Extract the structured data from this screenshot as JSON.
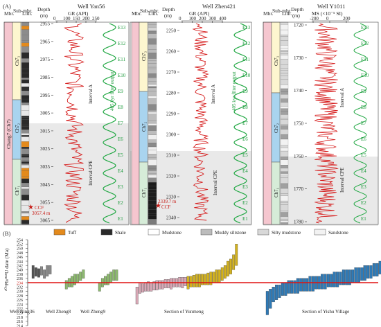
{
  "panel_a": {
    "label": "(A)",
    "col_headers": {
      "mbr": "Mbr.",
      "sub": "Sub-mbr.",
      "lith": "Lith.",
      "depth": "Depth",
      "depth_unit": "(m)"
    },
    "member_name": "Chang7 (Ch7)",
    "submembers": [
      "Ch7₃",
      "Ch7₂",
      "Ch7₁"
    ],
    "filter_label": "405 kyr filter output",
    "interval_a": "Interval A",
    "interval_cpe": "Interval CPE",
    "e_labels": [
      "E13",
      "E12",
      "E11",
      "E10",
      "E9",
      "E8",
      "E7",
      "E6",
      "E5",
      "E4",
      "E3",
      "E2",
      "E1"
    ],
    "wells": [
      {
        "name": "Well Yan56",
        "curve_label": "GR (API)",
        "curve_ticks": [
          "0",
          "100",
          "150",
          "200",
          "250"
        ],
        "depth_ticks": [
          "2955",
          "2965",
          "2975",
          "2985",
          "2995",
          "3005",
          "3015",
          "3025",
          "3035",
          "3045",
          "3055",
          "3065"
        ],
        "ccf_label": "CCF",
        "ccf_depth": "3057.4 m"
      },
      {
        "name": "Well Zhen421",
        "curve_label": "GR (API)",
        "curve_ticks": [
          "0",
          "100",
          "200",
          "300",
          "400"
        ],
        "depth_ticks": [
          "2250",
          "2260",
          "2270",
          "2280",
          "2290",
          "2300",
          "2310",
          "2320",
          "2330",
          "2340"
        ],
        "ccf_label": "CCF",
        "ccf_depth": "2339.7 m"
      },
      {
        "name": "Well Y1011",
        "curve_label": "MS (×10⁻⁵ SI)",
        "curve_ticks": [
          "-200",
          "0",
          "200"
        ],
        "depth_ticks": [
          "1720",
          "1730",
          "1740",
          "1750",
          "1760",
          "1770",
          "1780"
        ]
      }
    ]
  },
  "panel_b": {
    "label": "(B)",
    "legend": [
      "Tuff",
      "Shale",
      "Mudstone",
      "Muddy siltstone",
      "Silty mudstone",
      "Sandstone"
    ],
    "ylabel": "²⁰⁶Pb/²³⁸U date (Ma)",
    "highlight_value": "234",
    "sections": [
      "Well Ning36",
      "Well Zheng8",
      "Well Zheng9",
      "Section of Yunmeng",
      "Section of Yishu Village"
    ],
    "colors": {
      "ning36": "#444444",
      "zheng": "#8dbb6e",
      "yunmeng_a": "#d8a8b6",
      "yunmeng_b": "#d3b21f",
      "yishu": "#2f7ab6",
      "line": "#e01010"
    },
    "chart_data": {
      "type": "bar",
      "ylabel": "²⁰⁶Pb/²³⁸U date (Ma)",
      "ylim": [
        214,
        254
      ],
      "yticks": [
        214,
        216,
        218,
        220,
        222,
        224,
        226,
        228,
        230,
        232,
        234,
        236,
        238,
        240,
        242,
        244,
        246,
        248,
        250,
        252,
        254
      ],
      "reference_line": 234,
      "series": [
        {
          "name": "Well Ning36",
          "ranges": [
            [
              236,
              242
            ],
            [
              237,
              241
            ],
            [
              236.5,
              240.5
            ],
            [
              237.5,
              241.5
            ],
            [
              236,
              240
            ],
            [
              237,
              242
            ],
            [
              238,
              242
            ]
          ]
        },
        {
          "name": "Well Zheng8",
          "ranges": [
            [
              231,
              235
            ],
            [
              232,
              236
            ],
            [
              232,
              237
            ],
            [
              233,
              238
            ],
            [
              234,
              238
            ],
            [
              235,
              239
            ],
            [
              236,
              240
            ]
          ]
        },
        {
          "name": "Well Zheng9",
          "ranges": [
            [
              230,
              234
            ],
            [
              232,
              236
            ],
            [
              233,
              237
            ],
            [
              233,
              238
            ],
            [
              234,
              239
            ],
            [
              235,
              240
            ],
            [
              235,
              240
            ]
          ]
        },
        {
          "name": "Section of Yunmeng",
          "ranges": [
            [
              224,
              232
            ],
            [
              229,
              234
            ],
            [
              229.5,
              233.5
            ],
            [
              230,
              234
            ],
            [
              230,
              234.5
            ],
            [
              230,
              234
            ],
            [
              230.5,
              234.5
            ],
            [
              230.5,
              235
            ],
            [
              231,
              235
            ],
            [
              231,
              235
            ],
            [
              231.5,
              235.5
            ],
            [
              231.5,
              235.5
            ],
            [
              231,
              236
            ],
            [
              232,
              236
            ],
            [
              232,
              236
            ],
            [
              232,
              236.5
            ],
            [
              231.5,
              236.5
            ],
            [
              232.5,
              236.5
            ],
            [
              231,
              237
            ],
            [
              232,
              237
            ],
            [
              232,
              237.5
            ],
            [
              232,
              238
            ],
            [
              232,
              238
            ],
            [
              233,
              238
            ],
            [
              233,
              238
            ],
            [
              233,
              238.5
            ],
            [
              233,
              239
            ],
            [
              234,
              239
            ],
            [
              234,
              240
            ],
            [
              234,
              240
            ],
            [
              235,
              241
            ],
            [
              236,
              242
            ],
            [
              237,
              244
            ],
            [
              238,
              245
            ],
            [
              240,
              247
            ],
            [
              242,
              252
            ]
          ]
        },
        {
          "name": "Section of Yishu Village",
          "ranges": [
            [
              219,
              230
            ],
            [
              222,
              231
            ],
            [
              225,
              232
            ],
            [
              226,
              233
            ],
            [
              227,
              233
            ],
            [
              228,
              234
            ],
            [
              228,
              234
            ],
            [
              229,
              235
            ],
            [
              229,
              235
            ],
            [
              229,
              235
            ],
            [
              229,
              236
            ],
            [
              230,
              236
            ],
            [
              230,
              236
            ],
            [
              230,
              236
            ],
            [
              230,
              237
            ],
            [
              230,
              237
            ],
            [
              231,
              237
            ],
            [
              231,
              237
            ],
            [
              231,
              238
            ],
            [
              231,
              238
            ],
            [
              232,
              238
            ],
            [
              232,
              238
            ],
            [
              232,
              239
            ],
            [
              232,
              239
            ],
            [
              233,
              239
            ],
            [
              233,
              240
            ],
            [
              233,
              240
            ],
            [
              233,
              240
            ],
            [
              234,
              240
            ],
            [
              234,
              241
            ],
            [
              234,
              241
            ],
            [
              235,
              241
            ],
            [
              235,
              242
            ],
            [
              236,
              242
            ],
            [
              236,
              242
            ],
            [
              237,
              243
            ],
            [
              237,
              243
            ],
            [
              238,
              244
            ],
            [
              238,
              245
            ],
            [
              239,
              245
            ],
            [
              240,
              246
            ],
            [
              240,
              247
            ],
            [
              241,
              248
            ],
            [
              242,
              249
            ],
            [
              243,
              250
            ],
            [
              244,
              251
            ],
            [
              246,
              252
            ],
            [
              247,
              253
            ]
          ]
        }
      ]
    }
  }
}
